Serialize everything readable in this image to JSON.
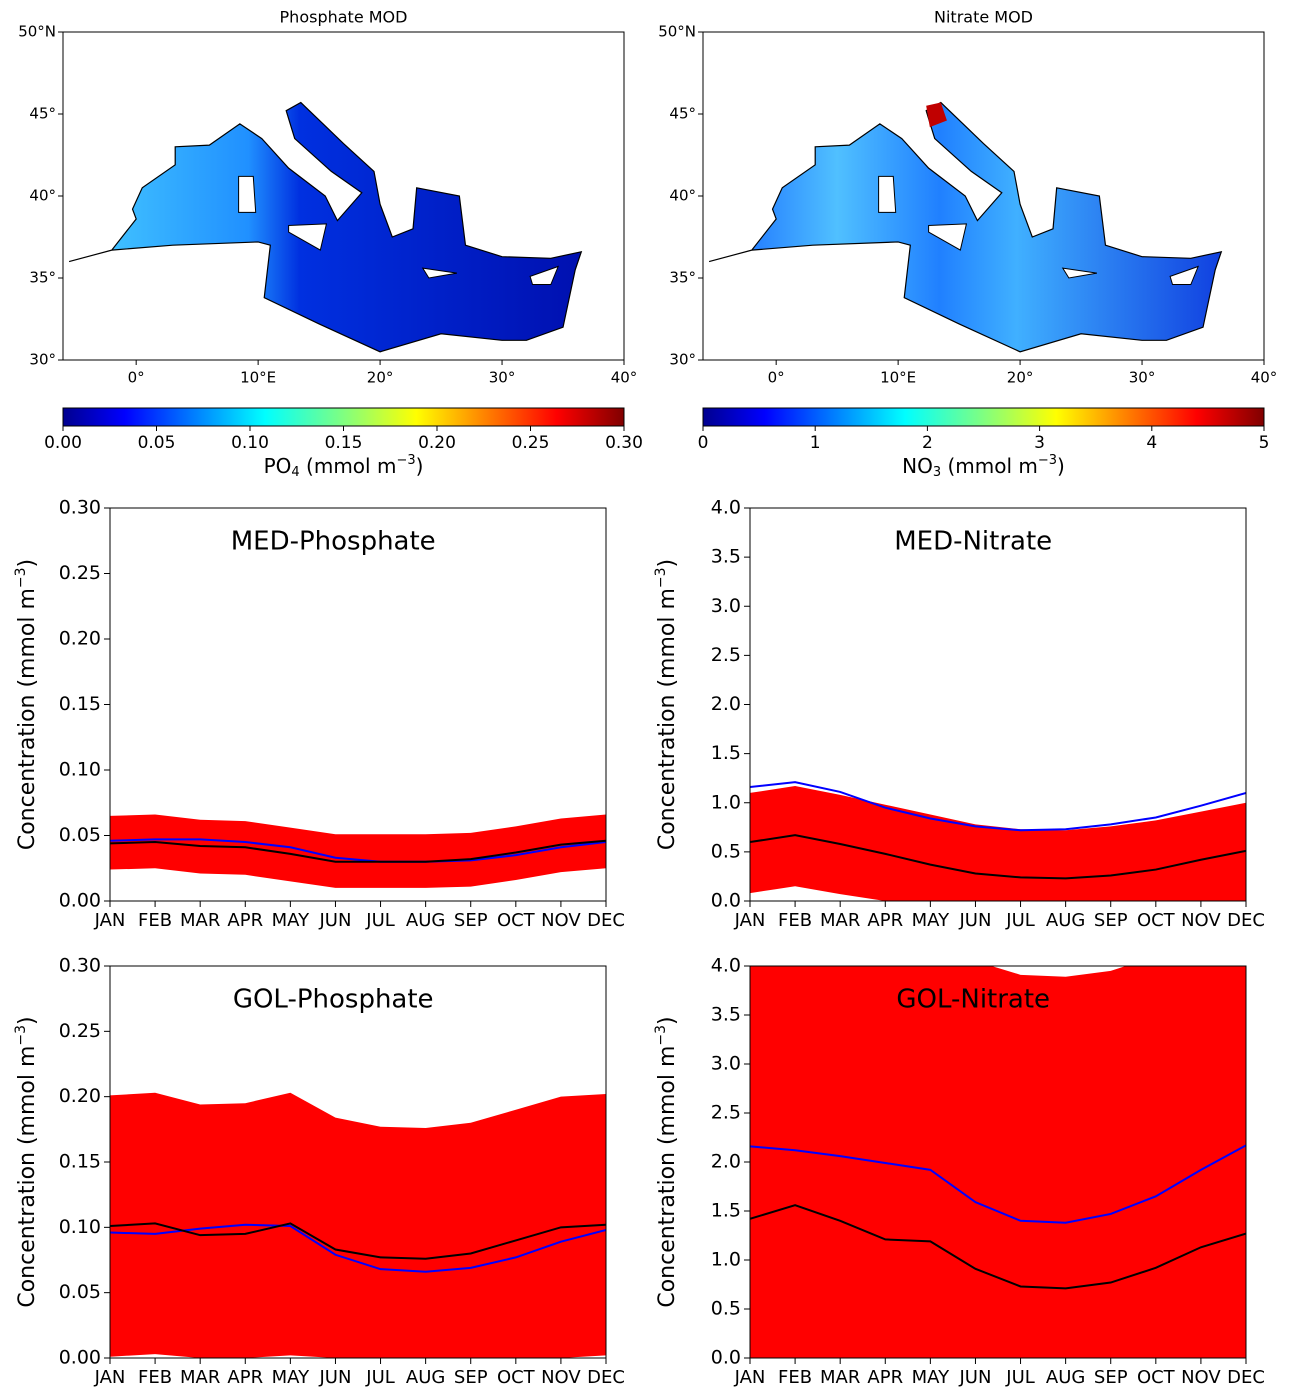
{
  "chart_data": [
    {
      "type": "map",
      "title": "Phosphate MOD",
      "xlim": [
        -6,
        40
      ],
      "ylim": [
        30,
        50
      ],
      "xticks": [
        {
          "value": 0,
          "label": "0°"
        },
        {
          "value": 10,
          "label": "10°E"
        },
        {
          "value": 20,
          "label": "20°"
        },
        {
          "value": 30,
          "label": "30°"
        },
        {
          "value": 40,
          "label": "40°"
        }
      ],
      "yticks": [
        {
          "value": 30,
          "label": "30°"
        },
        {
          "value": 35,
          "label": "35°"
        },
        {
          "value": 40,
          "label": "40°"
        },
        {
          "value": 45,
          "label": "45°"
        },
        {
          "value": 50,
          "label": "50°N"
        }
      ],
      "colorbar_lim": [
        0,
        0.3
      ],
      "colorbar_ticks": [
        {
          "value": 0,
          "label": "0.00"
        },
        {
          "value": 0.05,
          "label": "0.05"
        },
        {
          "value": 0.1,
          "label": "0.10"
        },
        {
          "value": 0.15,
          "label": "0.15"
        },
        {
          "value": 0.2,
          "label": "0.20"
        },
        {
          "value": 0.25,
          "label": "0.25"
        },
        {
          "value": 0.3,
          "label": "0.30"
        }
      ],
      "colorbar_label": [
        "PO",
        "4",
        " (mmol m",
        "−3",
        ")"
      ]
    },
    {
      "type": "map",
      "title": "Nitrate MOD",
      "xlim": [
        -6,
        40
      ],
      "ylim": [
        30,
        50
      ],
      "xticks": [
        {
          "value": 0,
          "label": "0°"
        },
        {
          "value": 10,
          "label": "10°E"
        },
        {
          "value": 20,
          "label": "20°"
        },
        {
          "value": 30,
          "label": "30°"
        },
        {
          "value": 40,
          "label": "40°"
        }
      ],
      "yticks": [
        {
          "value": 30,
          "label": "30°"
        },
        {
          "value": 35,
          "label": "35°"
        },
        {
          "value": 40,
          "label": "40°"
        },
        {
          "value": 45,
          "label": "45°"
        },
        {
          "value": 50,
          "label": "50°N"
        }
      ],
      "colorbar_lim": [
        0,
        5
      ],
      "colorbar_ticks": [
        0,
        1,
        2,
        3,
        4,
        5
      ],
      "colorbar_label": [
        "NO",
        "3",
        " (mmol m",
        "−3",
        ")"
      ]
    },
    {
      "type": "line",
      "title": "MED-Phosphate",
      "ylabel": [
        "Concentration (mmol m",
        "−3",
        ")"
      ],
      "categories": [
        "JAN",
        "FEB",
        "MAR",
        "APR",
        "MAY",
        "JUN",
        "JUL",
        "AUG",
        "SEP",
        "OCT",
        "NOV",
        "DEC"
      ],
      "ylim": [
        0,
        0.3
      ],
      "yticks": [
        {
          "value": 0,
          "label": "0.00"
        },
        {
          "value": 0.05,
          "label": "0.05"
        },
        {
          "value": 0.1,
          "label": "0.10"
        },
        {
          "value": 0.15,
          "label": "0.15"
        },
        {
          "value": 0.2,
          "label": "0.20"
        },
        {
          "value": 0.25,
          "label": "0.25"
        },
        {
          "value": 0.3,
          "label": "0.30"
        }
      ],
      "band": {
        "color": "#ff0000",
        "upper": [
          0.065,
          0.066,
          0.062,
          0.061,
          0.056,
          0.051,
          0.051,
          0.051,
          0.052,
          0.057,
          0.063,
          0.066
        ],
        "lower": [
          0.024,
          0.025,
          0.021,
          0.02,
          0.015,
          0.01,
          0.01,
          0.01,
          0.011,
          0.016,
          0.022,
          0.025
        ]
      },
      "series": [
        {
          "color": "#0000ff",
          "values": [
            0.046,
            0.047,
            0.047,
            0.045,
            0.041,
            0.033,
            0.03,
            0.03,
            0.031,
            0.035,
            0.041,
            0.045
          ]
        },
        {
          "color": "#000000",
          "values": [
            0.044,
            0.045,
            0.042,
            0.041,
            0.036,
            0.03,
            0.03,
            0.03,
            0.032,
            0.037,
            0.043,
            0.046
          ]
        }
      ]
    },
    {
      "type": "line",
      "title": "MED-Nitrate",
      "ylabel": [
        "Concentration (mmol m",
        "−3",
        ")"
      ],
      "categories": [
        "JAN",
        "FEB",
        "MAR",
        "APR",
        "MAY",
        "JUN",
        "JUL",
        "AUG",
        "SEP",
        "OCT",
        "NOV",
        "DEC"
      ],
      "ylim": [
        0,
        4
      ],
      "yticks": [
        {
          "value": 0,
          "label": "0.0"
        },
        {
          "value": 0.5,
          "label": "0.5"
        },
        {
          "value": 1,
          "label": "1.0"
        },
        {
          "value": 1.5,
          "label": "1.5"
        },
        {
          "value": 2,
          "label": "2.0"
        },
        {
          "value": 2.5,
          "label": "2.5"
        },
        {
          "value": 3,
          "label": "3.0"
        },
        {
          "value": 3.5,
          "label": "3.5"
        },
        {
          "value": 4,
          "label": "4.0"
        }
      ],
      "band": {
        "color": "#ff0000",
        "upper": [
          1.1,
          1.17,
          1.08,
          0.98,
          0.88,
          0.78,
          0.73,
          0.72,
          0.76,
          0.82,
          0.91,
          1.0
        ],
        "lower": [
          0.08,
          0.15,
          0.07,
          0,
          0,
          0,
          0,
          0,
          0,
          0,
          0,
          0
        ]
      },
      "series": [
        {
          "color": "#0000ff",
          "values": [
            1.16,
            1.21,
            1.11,
            0.95,
            0.84,
            0.76,
            0.72,
            0.73,
            0.78,
            0.85,
            0.97,
            1.1
          ]
        },
        {
          "color": "#000000",
          "values": [
            0.6,
            0.67,
            0.58,
            0.48,
            0.37,
            0.28,
            0.24,
            0.23,
            0.26,
            0.32,
            0.42,
            0.51
          ]
        }
      ]
    },
    {
      "type": "line",
      "title": "GOL-Phosphate",
      "ylabel": [
        "Concentration (mmol m",
        "−3",
        ")"
      ],
      "categories": [
        "JAN",
        "FEB",
        "MAR",
        "APR",
        "MAY",
        "JUN",
        "JUL",
        "AUG",
        "SEP",
        "OCT",
        "NOV",
        "DEC"
      ],
      "ylim": [
        0,
        0.3
      ],
      "yticks": [
        {
          "value": 0,
          "label": "0.00"
        },
        {
          "value": 0.05,
          "label": "0.05"
        },
        {
          "value": 0.1,
          "label": "0.10"
        },
        {
          "value": 0.15,
          "label": "0.15"
        },
        {
          "value": 0.2,
          "label": "0.20"
        },
        {
          "value": 0.25,
          "label": "0.25"
        },
        {
          "value": 0.3,
          "label": "0.30"
        }
      ],
      "band": {
        "color": "#ff0000",
        "upper": [
          0.201,
          0.203,
          0.194,
          0.195,
          0.203,
          0.184,
          0.177,
          0.176,
          0.18,
          0.19,
          0.2,
          0.202
        ],
        "lower": [
          0.001,
          0.003,
          0,
          0,
          0.002,
          0,
          0,
          0,
          0,
          0,
          0,
          0.002
        ]
      },
      "series": [
        {
          "color": "#0000ff",
          "values": [
            0.096,
            0.095,
            0.099,
            0.102,
            0.101,
            0.079,
            0.068,
            0.066,
            0.069,
            0.077,
            0.089,
            0.098
          ]
        },
        {
          "color": "#000000",
          "values": [
            0.101,
            0.103,
            0.094,
            0.095,
            0.103,
            0.083,
            0.077,
            0.076,
            0.08,
            0.09,
            0.1,
            0.102
          ]
        }
      ]
    },
    {
      "type": "line",
      "title": "GOL-Nitrate",
      "ylabel": [
        "Concentration (mmol m",
        "−3",
        ")"
      ],
      "categories": [
        "JAN",
        "FEB",
        "MAR",
        "APR",
        "MAY",
        "JUN",
        "JUL",
        "AUG",
        "SEP",
        "OCT",
        "NOV",
        "DEC"
      ],
      "ylim": [
        0,
        4
      ],
      "yticks": [
        {
          "value": 0,
          "label": "0.0"
        },
        {
          "value": 0.5,
          "label": "0.5"
        },
        {
          "value": 1,
          "label": "1.0"
        },
        {
          "value": 1.5,
          "label": "1.5"
        },
        {
          "value": 2,
          "label": "2.0"
        },
        {
          "value": 2.5,
          "label": "2.5"
        },
        {
          "value": 3,
          "label": "3.0"
        },
        {
          "value": 3.5,
          "label": "3.5"
        },
        {
          "value": 4,
          "label": "4.0"
        }
      ],
      "band": {
        "color": "#ff0000",
        "upper": [
          4.2,
          4.3,
          4.3,
          4.3,
          4.2,
          4.05,
          3.91,
          3.89,
          3.95,
          4.1,
          4.3,
          4.3
        ],
        "lower": [
          0,
          0,
          0,
          0,
          0,
          0,
          0,
          0,
          0,
          0,
          0,
          0
        ]
      },
      "series": [
        {
          "color": "#0000ff",
          "values": [
            2.16,
            2.12,
            2.06,
            1.99,
            1.92,
            1.59,
            1.4,
            1.38,
            1.47,
            1.65,
            1.92,
            2.17
          ]
        },
        {
          "color": "#000000",
          "values": [
            1.42,
            1.56,
            1.4,
            1.21,
            1.19,
            0.91,
            0.73,
            0.71,
            0.77,
            0.92,
            1.13,
            1.27
          ]
        }
      ]
    }
  ]
}
